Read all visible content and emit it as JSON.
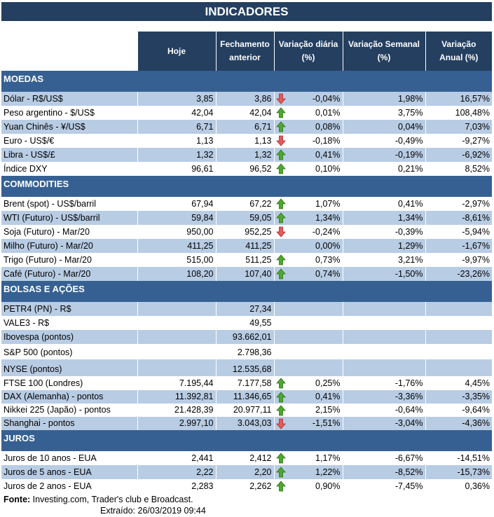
{
  "title": "INDICADORES",
  "headers": [
    "Hoje",
    "Fechamento anterior",
    "Variação diária (%)",
    "Variação Semanal (%)",
    "Variação Anual (%)"
  ],
  "colors": {
    "title_bg": "#243f60",
    "section_bg": "#366092",
    "stripe": "#b8cce4",
    "up": "#4ea72e",
    "down": "#e35b5b"
  },
  "sections": [
    {
      "name": "MOEDAS",
      "rows": [
        {
          "label": "Dólar - R$/US$",
          "hoje": "3,85",
          "fech": "3,86",
          "trend": "down",
          "dia": "-0,04%",
          "sem": "1,98%",
          "ano": "16,57%"
        },
        {
          "label": "Peso argentino - $/US$",
          "hoje": "42,04",
          "fech": "42,04",
          "trend": "up",
          "dia": "0,01%",
          "sem": "3,75%",
          "ano": "108,48%"
        },
        {
          "label": "Yuan Chinês - ¥/US$",
          "hoje": "6,71",
          "fech": "6,71",
          "trend": "up",
          "dia": "0,08%",
          "sem": "0,04%",
          "ano": "7,03%"
        },
        {
          "label": "Euro - US$/€",
          "hoje": "1,13",
          "fech": "1,13",
          "trend": "down",
          "dia": "-0,18%",
          "sem": "-0,49%",
          "ano": "-9,27%"
        },
        {
          "label": "Libra - US$/£",
          "hoje": "1,32",
          "fech": "1,32",
          "trend": "up",
          "dia": "0,41%",
          "sem": "-0,19%",
          "ano": "-6,92%"
        },
        {
          "label": "Índice DXY",
          "hoje": "96,61",
          "fech": "96,52",
          "trend": "up",
          "dia": "0,10%",
          "sem": "0,21%",
          "ano": "8,52%"
        }
      ]
    },
    {
      "name": "COMMODITIES",
      "rows": [
        {
          "label": "Brent (spot) - US$/barril",
          "hoje": "67,94",
          "fech": "67,22",
          "trend": "up",
          "dia": "1,07%",
          "sem": "0,41%",
          "ano": "-2,97%"
        },
        {
          "label": "WTI (Futuro) - US$/barril",
          "hoje": "59,84",
          "fech": "59,05",
          "trend": "up",
          "dia": "1,34%",
          "sem": "1,34%",
          "ano": "-8,61%"
        },
        {
          "label": "Soja (Futuro) - Mar/20",
          "hoje": "950,00",
          "fech": "952,25",
          "trend": "down",
          "dia": "-0,24%",
          "sem": "-0,39%",
          "ano": "-5,94%"
        },
        {
          "label": "Milho (Futuro) - Mar/20",
          "hoje": "411,25",
          "fech": "411,25",
          "trend": "none",
          "dia": "0,00%",
          "sem": "1,29%",
          "ano": "-1,67%"
        },
        {
          "label": "Trigo (Futuro) - Mar/20",
          "hoje": "515,00",
          "fech": "511,25",
          "trend": "up",
          "dia": "0,73%",
          "sem": "3,21%",
          "ano": "-9,97%"
        },
        {
          "label": "Café (Futuro) - Mar/20",
          "hoje": "108,20",
          "fech": "107,40",
          "trend": "up",
          "dia": "0,74%",
          "sem": "-1,50%",
          "ano": "-23,26%"
        }
      ]
    },
    {
      "name": "BOLSAS E AÇÕES",
      "rows": [
        {
          "label": "PETR4 (PN) - R$",
          "hoje": "",
          "fech": "27,34",
          "trend": "none",
          "dia": "",
          "sem": "",
          "ano": ""
        },
        {
          "label": "VALE3 - R$",
          "hoje": "",
          "fech": "49,55",
          "trend": "none",
          "dia": "",
          "sem": "",
          "ano": ""
        },
        {
          "label": "Ibovespa (pontos)",
          "hoje": "",
          "fech": "93.662,01",
          "trend": "none",
          "dia": "",
          "sem": "",
          "ano": ""
        },
        {
          "label": "S&P 500 (pontos)",
          "hoje": "",
          "fech": "2.798,36",
          "trend": "none",
          "dia": "",
          "sem": "",
          "ano": ""
        },
        {
          "label": "NYSE (pontos)",
          "hoje": "",
          "fech": "12.535,68",
          "trend": "none",
          "dia": "",
          "sem": "",
          "ano": ""
        },
        {
          "label": "FTSE 100 (Londres)",
          "hoje": "7.195,44",
          "fech": "7.177,58",
          "trend": "up",
          "dia": "0,25%",
          "sem": "-1,76%",
          "ano": "4,45%"
        },
        {
          "label": "DAX (Alemanha) - pontos",
          "hoje": "11.392,81",
          "fech": "11.346,65",
          "trend": "up",
          "dia": "0,41%",
          "sem": "-3,36%",
          "ano": "-3,35%"
        },
        {
          "label": "Nikkei 225 (Japão) - pontos",
          "hoje": "21.428,39",
          "fech": "20.977,11",
          "trend": "up",
          "dia": "2,15%",
          "sem": "-0,64%",
          "ano": "-9,64%"
        },
        {
          "label": "Shanghai - pontos",
          "hoje": "2.997,10",
          "fech": "3.043,03",
          "trend": "down",
          "dia": "-1,51%",
          "sem": "-3,04%",
          "ano": "-4,36%"
        }
      ]
    },
    {
      "name": "JUROS",
      "rows": [
        {
          "label": "Juros de 10 anos - EUA",
          "hoje": "2,441",
          "fech": "2,412",
          "trend": "up",
          "dia": "1,17%",
          "sem": "-6,67%",
          "ano": "-14,51%"
        },
        {
          "label": "Juros de 5 anos - EUA",
          "hoje": "2,22",
          "fech": "2,20",
          "trend": "up",
          "dia": "1,22%",
          "sem": "-8,52%",
          "ano": "-15,73%"
        },
        {
          "label": "Juros de 2 anos - EUA",
          "hoje": "2,283",
          "fech": "2,262",
          "trend": "up",
          "dia": "0,90%",
          "sem": "-7,45%",
          "ano": "0,36%"
        }
      ]
    }
  ],
  "footer": {
    "source_label": "Fonte:",
    "source_text": " Investing.com, Trader's club e Broadcast.",
    "extracted": "Extraído:  26/03/2019 09:44"
  }
}
